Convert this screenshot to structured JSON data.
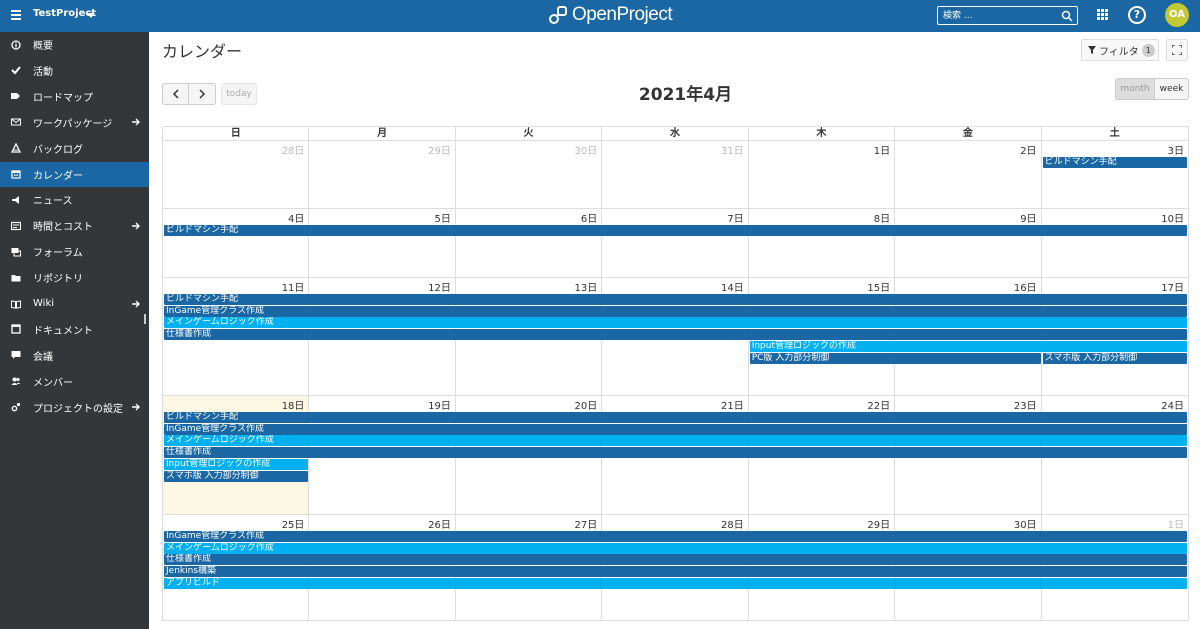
{
  "header": {
    "project_name": "TestProject",
    "logo_text": "OpenProject",
    "search_placeholder": "検索 ...",
    "help_label": "?",
    "avatar_initials": "OA"
  },
  "colors": {
    "header_bg": "#1a67a3",
    "sidebar_bg": "#333739",
    "active_item": "#1a67a3",
    "event_dark": "#1a67a3",
    "event_light": "#00b0f0",
    "today_bg": "#fcf8e3",
    "avatar_bg": "#c3c934"
  },
  "sidebar": {
    "items": [
      {
        "label": "概要",
        "icon": "info-icon",
        "arrow": false,
        "active": false
      },
      {
        "label": "活動",
        "icon": "check-icon",
        "arrow": false,
        "active": false
      },
      {
        "label": "ロードマップ",
        "icon": "tag-icon",
        "arrow": false,
        "active": false
      },
      {
        "label": "ワークパッケージ",
        "icon": "work-packages-icon",
        "arrow": true,
        "active": false
      },
      {
        "label": "バックログ",
        "icon": "backlog-icon",
        "arrow": false,
        "active": false
      },
      {
        "label": "カレンダー",
        "icon": "calendar-icon",
        "arrow": false,
        "active": true
      },
      {
        "label": "ニュース",
        "icon": "megaphone-icon",
        "arrow": false,
        "active": false
      },
      {
        "label": "時間とコスト",
        "icon": "budget-icon",
        "arrow": true,
        "active": false
      },
      {
        "label": "フォーラム",
        "icon": "forum-icon",
        "arrow": false,
        "active": false
      },
      {
        "label": "リポジトリ",
        "icon": "folder-icon",
        "arrow": false,
        "active": false
      },
      {
        "label": "Wiki",
        "icon": "book-icon",
        "arrow": true,
        "active": false
      },
      {
        "label": "ドキュメント",
        "icon": "document-icon",
        "arrow": false,
        "active": false
      },
      {
        "label": "会議",
        "icon": "meeting-icon",
        "arrow": false,
        "active": false
      },
      {
        "label": "メンバー",
        "icon": "members-icon",
        "arrow": false,
        "active": false
      },
      {
        "label": "プロジェクトの設定",
        "icon": "settings-icon",
        "arrow": true,
        "active": false
      }
    ]
  },
  "main": {
    "page_title": "カレンダー",
    "filter_label": "フィルタ",
    "filter_count": "1",
    "today_label": "today",
    "calendar_title": "2021年4月",
    "view_month": "month",
    "view_week": "week"
  },
  "calendar": {
    "weekdays": [
      "日",
      "月",
      "火",
      "水",
      "木",
      "金",
      "土"
    ],
    "weeks": [
      {
        "days": [
          {
            "label": "28日",
            "other": true
          },
          {
            "label": "29日",
            "other": true
          },
          {
            "label": "30日",
            "other": true
          },
          {
            "label": "31日",
            "other": true
          },
          {
            "label": "1日",
            "other": false
          },
          {
            "label": "2日",
            "other": false
          },
          {
            "label": "3日",
            "other": false
          }
        ],
        "events": [
          {
            "title": "ビルドマシン手配",
            "start": 6,
            "span": 1,
            "row": 0,
            "color": "dark"
          }
        ]
      },
      {
        "days": [
          {
            "label": "4日",
            "other": false
          },
          {
            "label": "5日",
            "other": false
          },
          {
            "label": "6日",
            "other": false
          },
          {
            "label": "7日",
            "other": false
          },
          {
            "label": "8日",
            "other": false
          },
          {
            "label": "9日",
            "other": false
          },
          {
            "label": "10日",
            "other": false
          }
        ],
        "events": [
          {
            "title": "ビルドマシン手配",
            "start": 0,
            "span": 7,
            "row": 0,
            "color": "dark"
          }
        ]
      },
      {
        "days": [
          {
            "label": "11日",
            "other": false
          },
          {
            "label": "12日",
            "other": false
          },
          {
            "label": "13日",
            "other": false
          },
          {
            "label": "14日",
            "other": false
          },
          {
            "label": "15日",
            "other": false
          },
          {
            "label": "16日",
            "other": false
          },
          {
            "label": "17日",
            "other": false
          }
        ],
        "events": [
          {
            "title": "ビルドマシン手配",
            "start": 0,
            "span": 7,
            "row": 0,
            "color": "dark"
          },
          {
            "title": "InGame管理クラス作成",
            "start": 0,
            "span": 7,
            "row": 1,
            "color": "dark"
          },
          {
            "title": "メインゲームロジック作成",
            "start": 0,
            "span": 7,
            "row": 2,
            "color": "light"
          },
          {
            "title": "仕様書作成",
            "start": 0,
            "span": 7,
            "row": 3,
            "color": "dark"
          },
          {
            "title": "Input管理ロジックの作成",
            "start": 4,
            "span": 3,
            "row": 4,
            "color": "light"
          },
          {
            "title": "PC版 入力部分制御",
            "start": 4,
            "span": 2,
            "row": 5,
            "color": "dark"
          },
          {
            "title": "スマホ版 入力部分制御",
            "start": 6,
            "span": 1,
            "row": 5,
            "color": "dark"
          }
        ]
      },
      {
        "days": [
          {
            "label": "18日",
            "other": false,
            "today": true
          },
          {
            "label": "19日",
            "other": false
          },
          {
            "label": "20日",
            "other": false
          },
          {
            "label": "21日",
            "other": false
          },
          {
            "label": "22日",
            "other": false
          },
          {
            "label": "23日",
            "other": false
          },
          {
            "label": "24日",
            "other": false
          }
        ],
        "events": [
          {
            "title": "ビルドマシン手配",
            "start": 0,
            "span": 7,
            "row": 0,
            "color": "dark"
          },
          {
            "title": "InGame管理クラス作成",
            "start": 0,
            "span": 7,
            "row": 1,
            "color": "dark"
          },
          {
            "title": "メインゲームロジック作成",
            "start": 0,
            "span": 7,
            "row": 2,
            "color": "light"
          },
          {
            "title": "仕様書作成",
            "start": 0,
            "span": 7,
            "row": 3,
            "color": "dark"
          },
          {
            "title": "Input管理ロジックの作成",
            "start": 0,
            "span": 1,
            "row": 4,
            "color": "light"
          },
          {
            "title": "スマホ版 入力部分制御",
            "start": 0,
            "span": 1,
            "row": 5,
            "color": "dark"
          }
        ]
      },
      {
        "days": [
          {
            "label": "25日",
            "other": false
          },
          {
            "label": "26日",
            "other": false
          },
          {
            "label": "27日",
            "other": false
          },
          {
            "label": "28日",
            "other": false
          },
          {
            "label": "29日",
            "other": false
          },
          {
            "label": "30日",
            "other": false
          },
          {
            "label": "1日",
            "other": true
          }
        ],
        "events": [
          {
            "title": "InGame管理クラス作成",
            "start": 0,
            "span": 7,
            "row": 0,
            "color": "dark"
          },
          {
            "title": "メインゲームロジック作成",
            "start": 0,
            "span": 7,
            "row": 1,
            "color": "light"
          },
          {
            "title": "仕様書作成",
            "start": 0,
            "span": 7,
            "row": 2,
            "color": "dark"
          },
          {
            "title": "Jenkins構築",
            "start": 0,
            "span": 7,
            "row": 3,
            "color": "dark"
          },
          {
            "title": "アプリビルド",
            "start": 0,
            "span": 7,
            "row": 4,
            "color": "light"
          }
        ]
      }
    ]
  }
}
